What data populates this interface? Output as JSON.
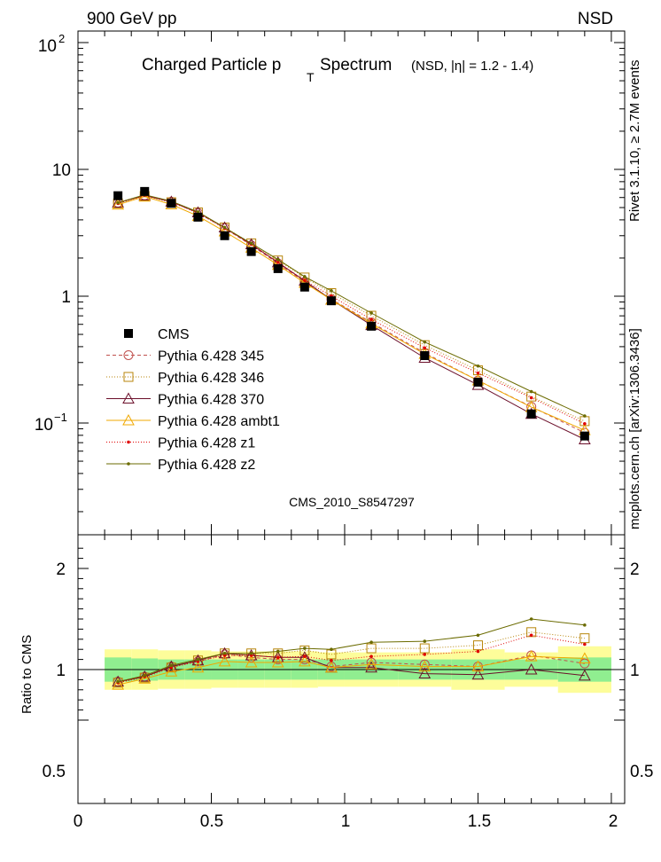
{
  "header": {
    "left": "900 GeV pp",
    "right": "NSD"
  },
  "title": {
    "main": "Charged Particle p",
    "sub": "T",
    "main2": "Spectrum",
    "selection": "(NSD, |η| = 1.2 - 1.4)"
  },
  "side_labels": {
    "top": "Rivet 3.1.10, ≥ 2.7M events",
    "bottom": "mcplots.cern.ch [arXiv:1306.3436]"
  },
  "watermark": "CMS_2010_S8547297",
  "ratio_ylabel": "Ratio to CMS",
  "ytick_labels": {
    "t10": "10",
    "t1": "1",
    "t100_base": "10",
    "t100_exp": "2",
    "t01_base": "10",
    "t01_exp": "−1"
  },
  "ratio_tick_labels": {
    "r2": "2",
    "r1": "1",
    "r05": "0.5"
  },
  "xtick_labels": {
    "t0": "0",
    "t05": "0.5",
    "t1": "1",
    "t15": "1.5",
    "t2": "2"
  },
  "chart_data": {
    "type": "scatter",
    "title": "Charged Particle pT Spectrum (NSD, |η| = 1.2 - 1.4)",
    "xlim": [
      0,
      2.05
    ],
    "main_ylim": [
      0.015,
      130
    ],
    "main_yscale": "log",
    "ratio_ylim": [
      0.4,
      2.3
    ],
    "legend_position": "middle-left",
    "x": [
      0.15,
      0.25,
      0.35,
      0.45,
      0.55,
      0.65,
      0.75,
      0.85,
      0.95,
      1.1,
      1.3,
      1.5,
      1.7,
      1.9
    ],
    "bin_edges": [
      0.1,
      0.2,
      0.3,
      0.4,
      0.5,
      0.6,
      0.7,
      0.8,
      0.9,
      1.0,
      1.2,
      1.4,
      1.6,
      1.8,
      2.0
    ],
    "data": {
      "name": "CMS",
      "color": "#000000",
      "values": [
        6.2,
        6.7,
        5.4,
        4.2,
        3.0,
        2.25,
        1.65,
        1.18,
        0.92,
        0.58,
        0.34,
        0.21,
        0.118,
        0.079
      ],
      "ratio_band_stat": [
        0.12,
        0.11,
        0.1,
        0.1,
        0.1,
        0.1,
        0.1,
        0.1,
        0.1,
        0.1,
        0.1,
        0.1,
        0.1,
        0.12,
        0.15
      ],
      "ratio_band_total": [
        0.2,
        0.2,
        0.19,
        0.19,
        0.18,
        0.18,
        0.18,
        0.18,
        0.17,
        0.17,
        0.17,
        0.2,
        0.17,
        0.23,
        0.25
      ]
    },
    "series": [
      {
        "name": "Pythia 6.428 345",
        "color": "#c0504d",
        "marker": "circle",
        "dash": "4,3",
        "ratio": [
          0.88,
          0.93,
          1.03,
          1.08,
          1.15,
          1.12,
          1.1,
          1.1,
          1.03,
          1.07,
          1.05,
          1.03,
          1.14,
          1.06
        ]
      },
      {
        "name": "Pythia 6.428 346",
        "color": "#b8860b",
        "marker": "square",
        "dash": "1,2",
        "ratio": [
          0.87,
          0.92,
          1.02,
          1.09,
          1.16,
          1.16,
          1.16,
          1.19,
          1.15,
          1.21,
          1.21,
          1.24,
          1.37,
          1.31
        ]
      },
      {
        "name": "Pythia 6.428 370",
        "color": "#6b0f2a",
        "marker": "triangle",
        "dash": "",
        "ratio": [
          0.88,
          0.93,
          1.03,
          1.09,
          1.16,
          1.14,
          1.12,
          1.12,
          1.02,
          1.02,
          0.96,
          0.95,
          1.0,
          0.94
        ]
      },
      {
        "name": "Pythia 6.428 ambt1",
        "color": "#f0a800",
        "marker": "triangle",
        "dash": "",
        "ratio": [
          0.85,
          0.91,
          0.98,
          1.02,
          1.08,
          1.07,
          1.07,
          1.08,
          1.02,
          1.05,
          1.03,
          1.03,
          1.13,
          1.11
        ]
      },
      {
        "name": "Pythia 6.428 z1",
        "color": "#e00000",
        "marker": "dot",
        "dash": "1,2",
        "ratio": [
          0.87,
          0.93,
          1.02,
          1.08,
          1.14,
          1.14,
          1.12,
          1.13,
          1.09,
          1.13,
          1.15,
          1.18,
          1.34,
          1.25
        ]
      },
      {
        "name": "Pythia 6.428 z2",
        "color": "#6b6b00",
        "marker": "dot",
        "dash": "",
        "ratio": [
          0.88,
          0.94,
          1.04,
          1.1,
          1.16,
          1.16,
          1.18,
          1.21,
          1.2,
          1.27,
          1.28,
          1.34,
          1.5,
          1.44
        ]
      }
    ]
  }
}
